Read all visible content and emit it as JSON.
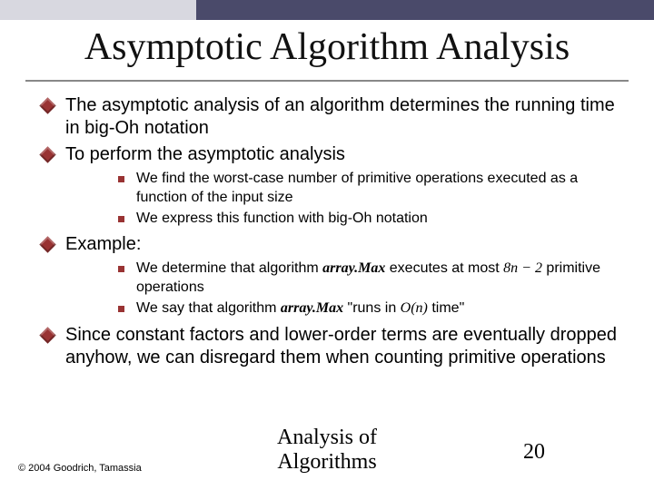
{
  "colors": {
    "bullet_primary": "#993333",
    "topbar_light": "#d8d8e0",
    "topbar_dark": "#4a4a6a",
    "rule": "#888888",
    "text": "#000000",
    "background": "#ffffff"
  },
  "typography": {
    "title_family": "Times New Roman",
    "body_family": "Verdana",
    "title_size_pt": 32,
    "level1_size_pt": 15,
    "level2_size_pt": 12,
    "footer_size_pt": 18
  },
  "title": "Asymptotic Algorithm Analysis",
  "bullets": [
    {
      "text": "The asymptotic analysis of an algorithm determines the running time in big-Oh notation"
    },
    {
      "text": "To perform the asymptotic analysis",
      "sub": [
        "We find the worst-case number of primitive operations executed as a function of the input size",
        "We express this function with big-Oh notation"
      ]
    },
    {
      "text": "Example:",
      "sub_rich": [
        {
          "pre": "We determine that algorithm ",
          "em1": "array.Max",
          "mid": " executes at most ",
          "em2": "8n − 2",
          "post": " primitive operations"
        },
        {
          "pre": "We say that algorithm ",
          "em1": "array.Max",
          "mid": " \"runs in ",
          "em2": "O(n)",
          "post": " time\""
        }
      ]
    },
    {
      "text": "Since constant factors and lower-order terms are eventually dropped anyhow, we can disregard them when counting primitive operations"
    }
  ],
  "footer": {
    "title_line1": "Analysis of",
    "title_line2": "Algorithms",
    "page": "20",
    "copyright": "© 2004 Goodrich, Tamassia"
  }
}
